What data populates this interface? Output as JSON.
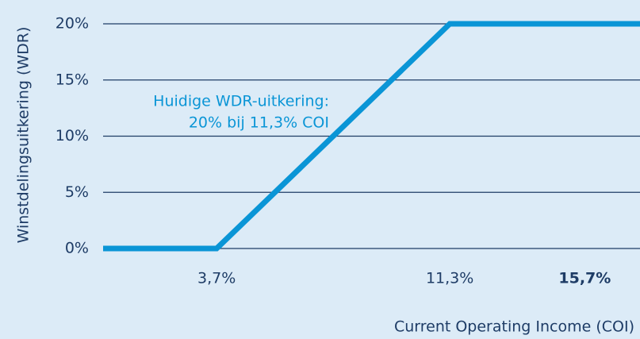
{
  "chart_data": {
    "type": "line",
    "x": [
      0,
      3.7,
      11.3,
      17.5
    ],
    "values": [
      0,
      0,
      20,
      20
    ],
    "color": "#0a95d6",
    "xlim": [
      0,
      17.5
    ],
    "ylim": [
      0,
      20
    ],
    "xticks": [
      {
        "value": 3.7,
        "label": "3,7%"
      },
      {
        "value": 11.3,
        "label": "11,3%"
      },
      {
        "value": 15.7,
        "label": "15,7%",
        "bold": true
      }
    ],
    "yticks": [
      {
        "value": 0,
        "label": "0%"
      },
      {
        "value": 5,
        "label": "5%"
      },
      {
        "value": 10,
        "label": "10%"
      },
      {
        "value": 15,
        "label": "15%"
      },
      {
        "value": 20,
        "label": "20%"
      }
    ],
    "grid": true,
    "xlabel": "Current Operating Income (COI)",
    "ylabel": "Winstdelingsuitkering (WDR)",
    "annotation": [
      "Huidige WDR-uitkering:",
      "20% bij 11,3% COI"
    ]
  }
}
